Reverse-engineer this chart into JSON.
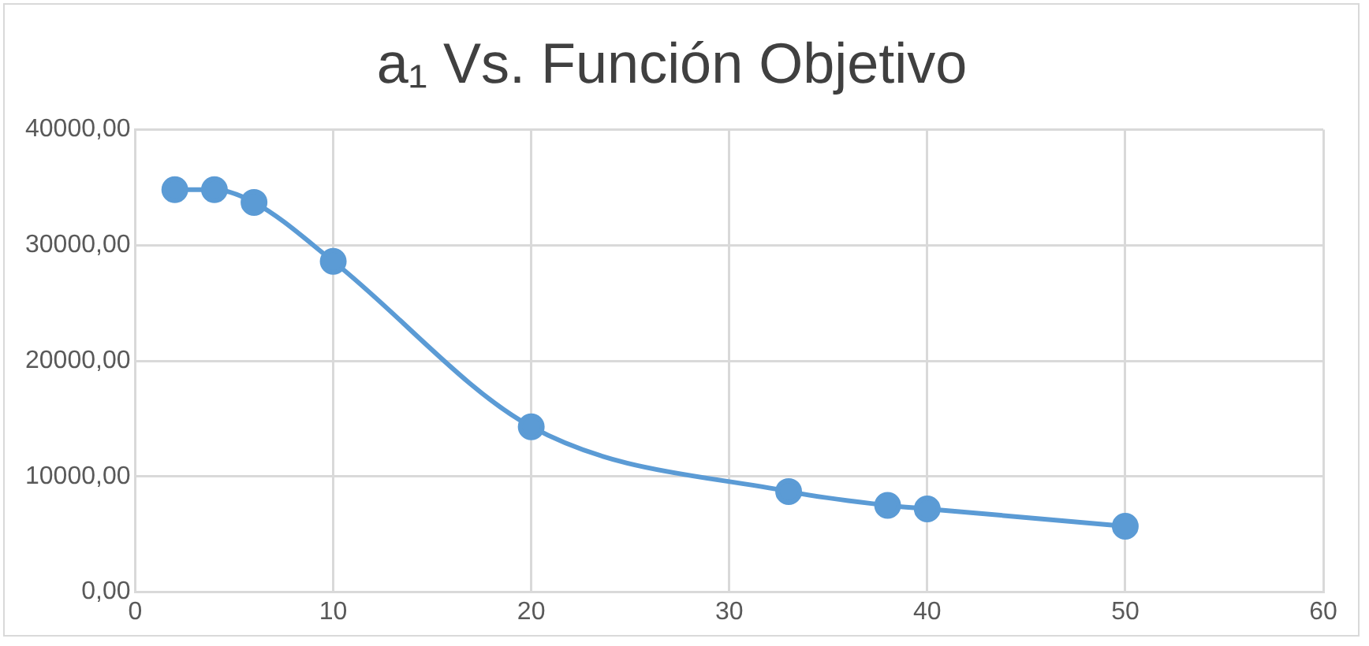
{
  "chart_data": {
    "type": "line",
    "title": "a₁ Vs. Función Objetivo",
    "x": [
      2,
      4,
      6,
      10,
      20,
      33,
      38,
      40,
      50
    ],
    "series": [
      {
        "color": "#5b9bd5",
        "values": [
          34800,
          34800,
          33700,
          28600,
          14300,
          8700,
          7500,
          7200,
          5700
        ]
      }
    ],
    "xlim": [
      0,
      60
    ],
    "xticks": [
      0,
      10,
      20,
      30,
      40,
      50,
      60
    ],
    "ylim": [
      0,
      40000
    ],
    "yticks": [
      {
        "value": 0,
        "label": "0,00"
      },
      {
        "value": 10000,
        "label": "10000,00"
      },
      {
        "value": 20000,
        "label": "20000,00"
      },
      {
        "value": 30000,
        "label": "30000,00"
      },
      {
        "value": 40000,
        "label": "40000,00"
      }
    ],
    "grid": true,
    "legend": false,
    "marker": "circle",
    "line_style": "solid"
  }
}
